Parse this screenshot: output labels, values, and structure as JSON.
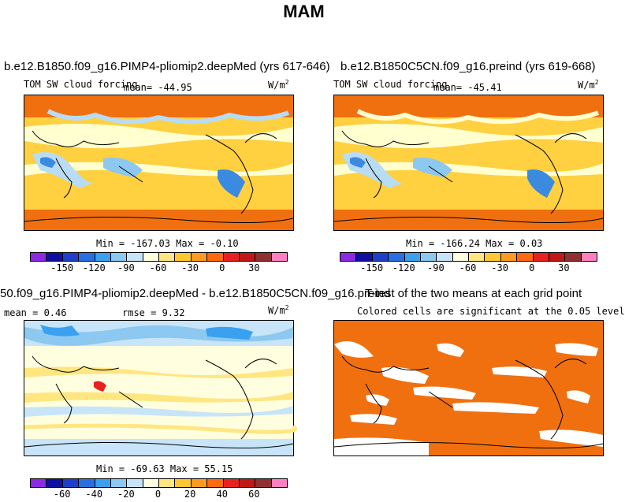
{
  "title": "MAM",
  "panels": {
    "p1": {
      "title": "b.e12.B1850.f09_g16.PIMP4-pliomip2.deepMed (yrs 617-646)",
      "variable": "TOM SW cloud forcing",
      "mean": "mean= -44.95",
      "units": "W/m",
      "units_sup": "2",
      "minmax": "Min = -167.03 Max =  -0.10"
    },
    "p2": {
      "title": "b.e12.B1850C5CN.f09_g16.preind (yrs 619-668)",
      "variable": "TOM SW cloud forcing",
      "mean": "mean= -45.41",
      "units": "W/m",
      "units_sup": "2",
      "minmax": "Min = -166.24 Max =   0.03"
    },
    "p3": {
      "title": "50.f09_g16.PIMP4-pliomip2.deepMed - b.e12.B1850C5CN.f09_g16.preind",
      "mean": "mean =   0.46",
      "rmse": "rmse =   9.32",
      "units": "W/m",
      "units_sup": "2",
      "minmax": "Min = -69.63 Max =  55.15"
    },
    "p4": {
      "title": "T-test of the two means at each grid point",
      "subtitle": "Colored cells are significant at the 0.05 level"
    }
  },
  "colorbar_abs": {
    "colors": [
      "#8a2be2",
      "#1010a0",
      "#1e40c8",
      "#2a6fe0",
      "#3aa0f0",
      "#8cc8f0",
      "#c8e4f8",
      "#ffffe0",
      "#ffe680",
      "#ffc830",
      "#ff9a20",
      "#ff6a10",
      "#e82020",
      "#c01818",
      "#903030",
      "#ff80c0"
    ],
    "labels": [
      "-150",
      "-120",
      "-90",
      "-60",
      "-30",
      "0",
      "30"
    ]
  },
  "colorbar_diff": {
    "colors": [
      "#8a2be2",
      "#1010a0",
      "#1e40c8",
      "#2a6fe0",
      "#3aa0f0",
      "#8cc8f0",
      "#c8e4f8",
      "#ffffe0",
      "#ffe680",
      "#ffc830",
      "#ff9a20",
      "#ff6a10",
      "#e82020",
      "#c01818",
      "#903030",
      "#ff80c0"
    ],
    "labels": [
      "-60",
      "-40",
      "-20",
      "0",
      "20",
      "40",
      "60"
    ]
  },
  "colors": {
    "orange": "#ff9a20",
    "deep_orange": "#f07010",
    "yellow": "#ffd040",
    "pale": "#ffffd0",
    "light_blue": "#b8dcf4",
    "blue": "#3a8ae0",
    "ttest_orange": "#f07010"
  }
}
